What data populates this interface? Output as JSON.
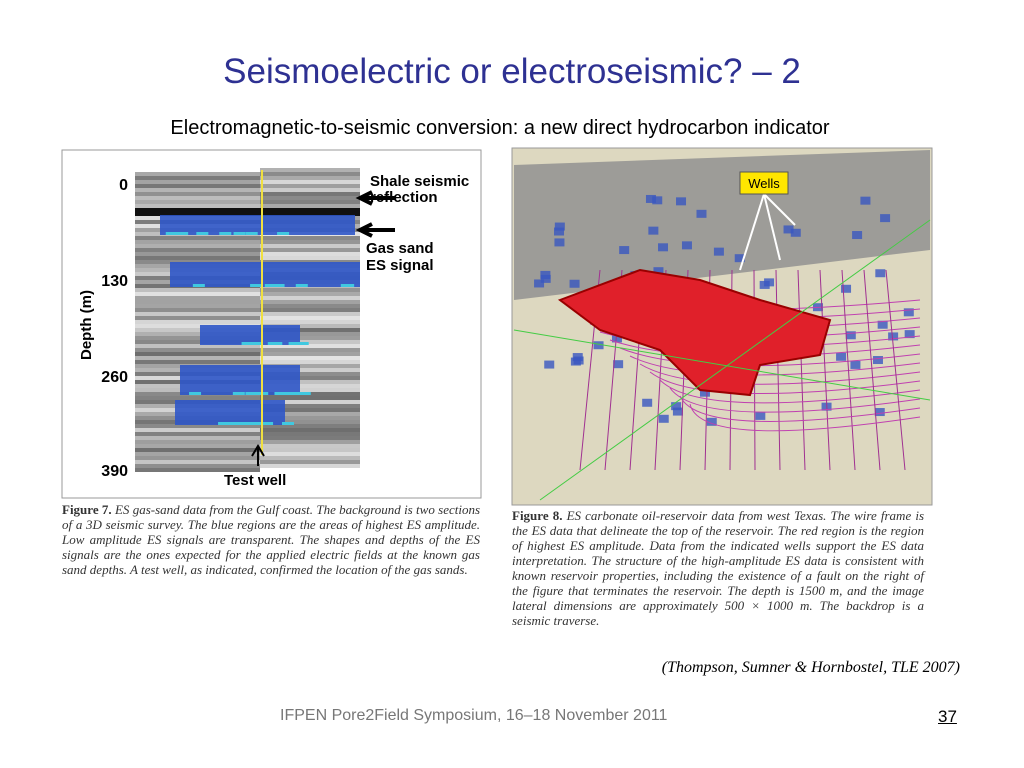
{
  "title": "Seismoelectric or electroseismic? – 2",
  "subtitle": "Electromagnetic-to-seismic conversion: a new direct hydrocarbon indicator",
  "figure7": {
    "shale_label": [
      "Shale seismic",
      "reflection"
    ],
    "gas_label": [
      "Gas sand",
      "ES signal"
    ],
    "well_label": "Test well",
    "axis_label": "Depth (m)",
    "depth_ticks": [
      0,
      130,
      260,
      390
    ],
    "caption_label": "Figure 7.",
    "caption": "ES gas-sand data from the Gulf coast. The background is two sections of a 3D seismic survey. The blue regions are the areas of highest ES amplitude. Low amplitude ES signals are transparent. The shapes and depths of the ES signals are the ones expected for the applied electric fields at the known gas sand depths. A test well, as indicated, confirmed the location of the gas sands."
  },
  "figure8": {
    "callout": "Wells",
    "caption_label": "Figure 8.",
    "caption": "ES carbonate oil-reservoir data from west Texas. The wire frame is the ES data that delineate the top of the reservoir. The red region is the region of highest ES amplitude. Data from the indicated wells support the ES data interpretation. The structure of the high-amplitude ES data is consistent with known reservoir properties, including the existence of a fault on the right of the figure that terminates the reservoir. The depth is 1500 m, and the image lateral dimensions are approximately 500 × 1000 m. The backdrop is a seismic traverse."
  },
  "citation": "(Thompson, Sumner & Hornbostel, TLE 2007)",
  "footer": "IFPEN Pore2Field Symposium, 16–18 November 2011",
  "page_number": "37"
}
